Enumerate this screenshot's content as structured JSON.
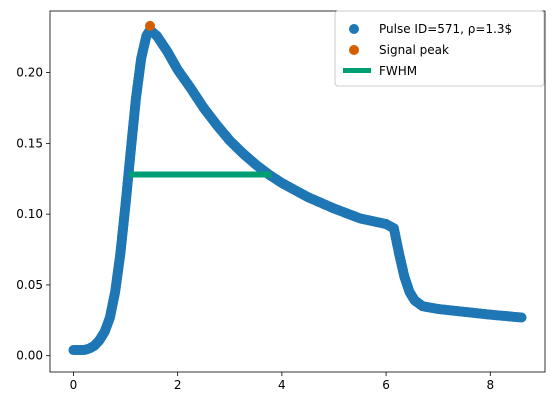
{
  "chart_data": {
    "type": "scatter",
    "title": "",
    "xlabel": "",
    "ylabel": "",
    "xlim": [
      -0.45,
      9.05
    ],
    "ylim": [
      -0.0115,
      0.2435
    ],
    "xticks": [
      0,
      2,
      4,
      6,
      8
    ],
    "yticks": [
      0.0,
      0.05,
      0.1,
      0.15,
      0.2
    ],
    "xtick_labels": [
      "0",
      "2",
      "4",
      "6",
      "8"
    ],
    "ytick_labels": [
      "0.00",
      "0.05",
      "0.10",
      "0.15",
      "0.20"
    ],
    "grid": false,
    "legend_position": "top-right",
    "series": [
      {
        "name": "Pulse ID=571, ρ=1.3$",
        "kind": "scatter",
        "color": "#1f77b4",
        "points": [
          [
            0.0,
            0.004
          ],
          [
            0.2,
            0.004
          ],
          [
            0.3,
            0.005
          ],
          [
            0.4,
            0.007
          ],
          [
            0.5,
            0.011
          ],
          [
            0.6,
            0.017
          ],
          [
            0.7,
            0.027
          ],
          [
            0.8,
            0.045
          ],
          [
            0.9,
            0.072
          ],
          [
            1.0,
            0.107
          ],
          [
            1.1,
            0.145
          ],
          [
            1.2,
            0.182
          ],
          [
            1.3,
            0.21
          ],
          [
            1.4,
            0.226
          ],
          [
            1.47,
            0.23
          ],
          [
            1.6,
            0.226
          ],
          [
            1.8,
            0.215
          ],
          [
            2.0,
            0.202
          ],
          [
            2.25,
            0.189
          ],
          [
            2.5,
            0.175
          ],
          [
            2.75,
            0.163
          ],
          [
            3.0,
            0.152
          ],
          [
            3.25,
            0.143
          ],
          [
            3.5,
            0.135
          ],
          [
            3.75,
            0.128
          ],
          [
            4.0,
            0.122
          ],
          [
            4.5,
            0.112
          ],
          [
            5.0,
            0.104
          ],
          [
            5.5,
            0.097
          ],
          [
            6.0,
            0.093
          ],
          [
            6.15,
            0.09
          ],
          [
            6.25,
            0.072
          ],
          [
            6.35,
            0.056
          ],
          [
            6.45,
            0.045
          ],
          [
            6.55,
            0.039
          ],
          [
            6.7,
            0.035
          ],
          [
            7.0,
            0.033
          ],
          [
            7.5,
            0.031
          ],
          [
            8.0,
            0.029
          ],
          [
            8.6,
            0.027
          ]
        ]
      },
      {
        "name": "Signal peak",
        "kind": "point",
        "color": "#d55e00",
        "x": 1.47,
        "y": 0.233
      },
      {
        "name": "FWHM",
        "kind": "hline",
        "color": "#009e73",
        "x": [
          1.07,
          3.8
        ],
        "y": 0.128
      }
    ]
  }
}
